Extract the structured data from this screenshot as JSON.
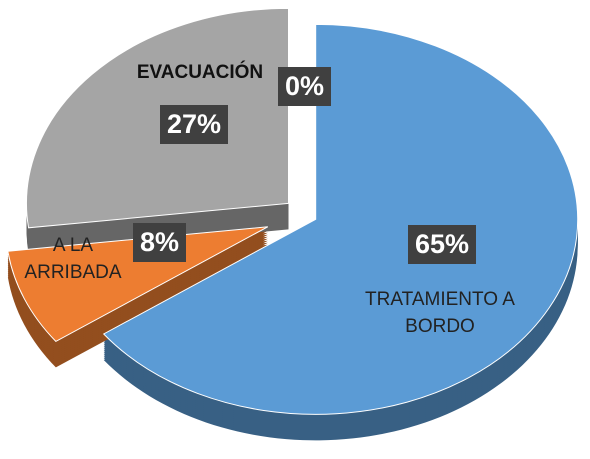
{
  "chart_data": {
    "type": "pie",
    "categories": [
      "TRATAMIENTO A BORDO",
      "A LA ARRIBADA",
      "EVACUACIÓN",
      null
    ],
    "values": [
      65,
      8,
      27,
      0
    ],
    "value_labels": [
      "65%",
      "8%",
      "27%",
      "0%"
    ],
    "colors": [
      "#5b9bd5",
      "#ed7d31",
      "#a5a5a5",
      "#ffc000"
    ],
    "legend": false
  }
}
